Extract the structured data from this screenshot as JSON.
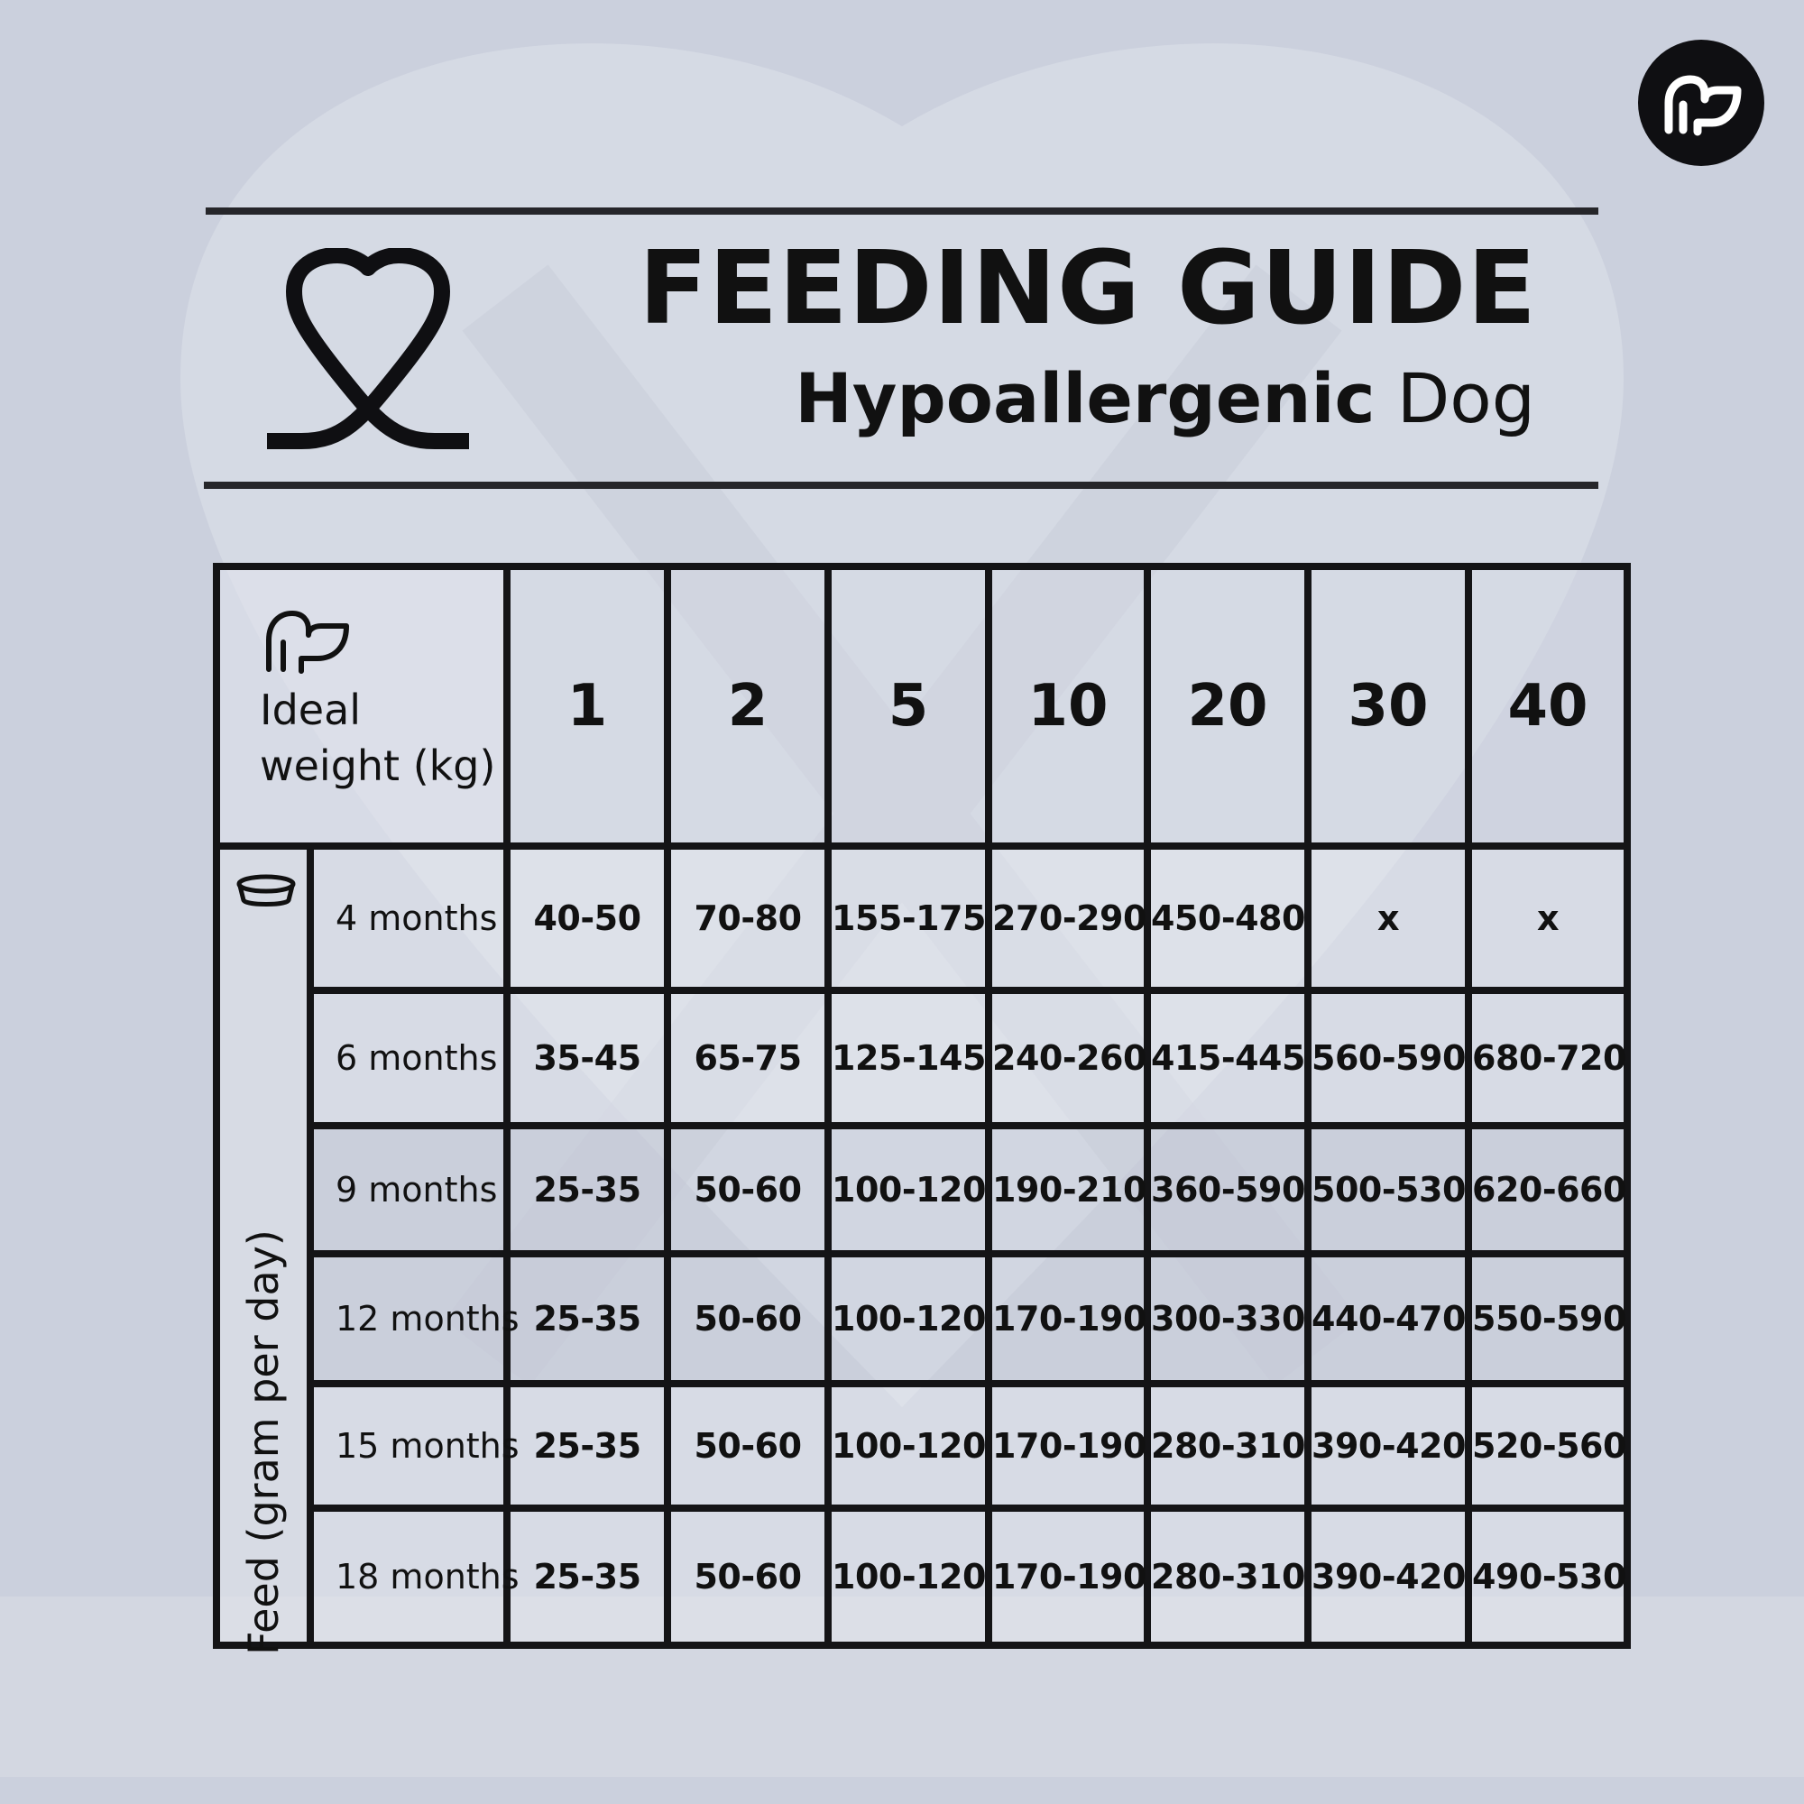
{
  "brand": {
    "corner_logo_icon": "dog-head-icon",
    "main_logo_icon": "heart-loop-icon",
    "bowl_icon": "food-bowl-icon"
  },
  "header": {
    "title": "FEEDING GUIDE",
    "subtitle_strong": "Hypoallergenic",
    "subtitle_light": "Dog"
  },
  "table": {
    "corner_label_line1": "Ideal",
    "corner_label_line2": "weight (kg)",
    "side_label": "Feed (gram per day)",
    "weights": [
      "1",
      "2",
      "5",
      "10",
      "20",
      "30",
      "40"
    ],
    "rows": [
      {
        "age": "4 months",
        "values": [
          "40-50",
          "70-80",
          "155-175",
          "270-290",
          "450-480",
          "x",
          "x"
        ]
      },
      {
        "age": "6 months",
        "values": [
          "35-45",
          "65-75",
          "125-145",
          "240-260",
          "415-445",
          "560-590",
          "680-720"
        ]
      },
      {
        "age": "9 months",
        "values": [
          "25-35",
          "50-60",
          "100-120",
          "190-210",
          "360-590",
          "500-530",
          "620-660"
        ]
      },
      {
        "age": "12 months",
        "values": [
          "25-35",
          "50-60",
          "100-120",
          "170-190",
          "300-330",
          "440-470",
          "550-590"
        ]
      },
      {
        "age": "15 months",
        "values": [
          "25-35",
          "50-60",
          "100-120",
          "170-190",
          "280-310",
          "390-420",
          "520-560"
        ]
      },
      {
        "age": "18 months",
        "values": [
          "25-35",
          "50-60",
          "100-120",
          "170-190",
          "280-310",
          "390-420",
          "490-530"
        ]
      }
    ]
  },
  "colors": {
    "background": "#cbd0dd",
    "ink": "#111111",
    "logo_bg": "#0f0f12"
  }
}
